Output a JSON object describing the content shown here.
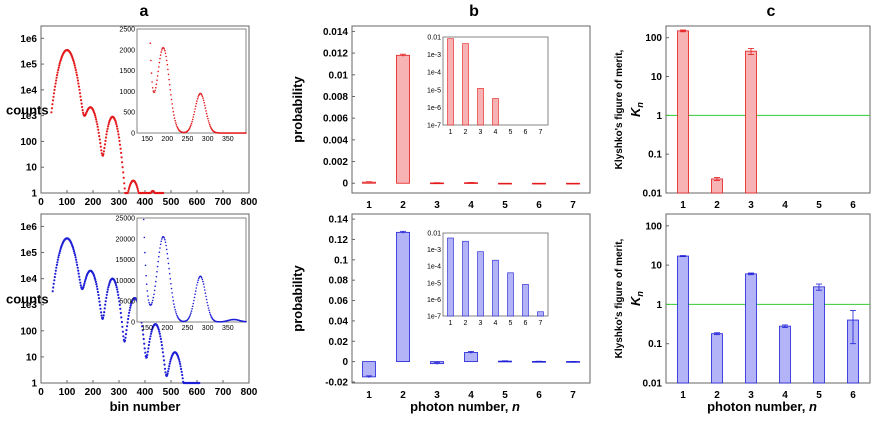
{
  "figure": {
    "column_letters": [
      "a",
      "b",
      "c"
    ],
    "colors": {
      "red": "#e31a1c",
      "red_fill": "#f7b3b3",
      "blue": "#1f1fd6",
      "blue_fill": "#b3b3f7",
      "green_line": "#33cc33"
    }
  },
  "chart_data": [
    {
      "id": "a_top",
      "type": "scatter",
      "color": "red",
      "xlabel": "",
      "ylabel": "counts",
      "xlim": [
        0,
        800
      ],
      "ylim": [
        1,
        3000000
      ],
      "yscale": "log",
      "xticks": [
        0,
        100,
        200,
        300,
        400,
        500,
        600,
        700,
        800
      ],
      "yticks": [
        1,
        10,
        100,
        1000,
        10000,
        100000,
        1000000
      ],
      "ytick_labels": [
        "1",
        "10",
        "100",
        "1e3",
        "1e4",
        "1e5",
        "1e6"
      ],
      "peaks": [
        [
          100,
          350000,
          18
        ],
        [
          190,
          2100,
          15
        ],
        [
          275,
          900,
          13
        ],
        [
          355,
          3,
          14
        ],
        [
          430,
          1.2,
          12
        ]
      ],
      "x_range": [
        40,
        470
      ],
      "inset": {
        "xlim": [
          125,
          395
        ],
        "ylim": [
          0,
          2500
        ],
        "xticks": [
          150,
          200,
          250,
          300,
          350
        ],
        "yticks": [
          0,
          500,
          1000,
          1500,
          2000,
          2500
        ],
        "peaks": [
          [
            100,
            350000,
            18
          ],
          [
            190,
            2050,
            15
          ],
          [
            282,
            950,
            13
          ]
        ],
        "x_range": [
          125,
          395
        ]
      }
    },
    {
      "id": "a_bottom",
      "type": "scatter",
      "color": "blue",
      "xlabel": "bin number",
      "ylabel": "counts",
      "xlim": [
        0,
        800
      ],
      "ylim": [
        1,
        3000000
      ],
      "yscale": "log",
      "xticks": [
        0,
        100,
        200,
        300,
        400,
        500,
        600,
        700,
        800
      ],
      "yticks": [
        1,
        10,
        100,
        1000,
        10000,
        100000,
        1000000
      ],
      "ytick_labels": [
        "1",
        "10",
        "100",
        "1e3",
        "1e4",
        "1e5",
        "1e6"
      ],
      "peaks": [
        [
          100,
          350000,
          18
        ],
        [
          190,
          20000,
          15
        ],
        [
          275,
          10000,
          13
        ],
        [
          360,
          1800,
          13
        ],
        [
          440,
          180,
          13
        ],
        [
          515,
          15,
          14
        ]
      ],
      "x_range": [
        45,
        610
      ],
      "inset": {
        "xlim": [
          125,
          395
        ],
        "ylim": [
          0,
          25000
        ],
        "xticks": [
          150,
          200,
          250,
          300,
          350
        ],
        "yticks": [
          0,
          5000,
          10000,
          15000,
          20000,
          25000
        ],
        "peaks": [
          [
            100,
            350000,
            18
          ],
          [
            190,
            20500,
            15
          ],
          [
            282,
            11000,
            13
          ],
          [
            365,
            600,
            14
          ]
        ],
        "x_range": [
          125,
          395
        ]
      }
    },
    {
      "id": "b_top",
      "type": "bar",
      "color": "red",
      "xlabel": "",
      "ylabel": "probability",
      "categories": [
        1,
        2,
        3,
        4,
        5,
        6,
        7
      ],
      "values": [
        0.0001,
        0.0118,
        3e-05,
        5e-05,
        0,
        0,
        0
      ],
      "errors": [
        4e-05,
        0.0001,
        2e-05,
        2e-05,
        0,
        0,
        0
      ],
      "ylim": [
        -0.0009,
        0.0145
      ],
      "yticks": [
        0,
        0.002,
        0.004,
        0.006,
        0.008,
        0.01,
        0.012,
        0.014
      ],
      "ytick_labels": [
        "0",
        "0.002",
        "0.004",
        "0.006",
        "0.008",
        "0.01",
        "0.012",
        "0.014"
      ],
      "inset": {
        "yscale": "log",
        "ylim": [
          1e-07,
          0.01
        ],
        "yticks": [
          1e-07,
          1e-06,
          1e-05,
          0.0001,
          0.001,
          0.01
        ],
        "ytick_labels": [
          "1e-7",
          "1e-6",
          "1e-5",
          "1e-4",
          "1e-3",
          "0.01"
        ],
        "categories": [
          1,
          2,
          3,
          4,
          5,
          6,
          7
        ],
        "values": [
          0.008,
          0.0042,
          1.2e-05,
          3.2e-06,
          null,
          null,
          null
        ]
      }
    },
    {
      "id": "b_bottom",
      "type": "bar",
      "color": "blue",
      "xlabel": "photon number, n",
      "ylabel": "probability",
      "categories": [
        1,
        2,
        3,
        4,
        5,
        6,
        7
      ],
      "values": [
        -0.015,
        0.127,
        -0.002,
        0.009,
        0.0005,
        0.0002,
        0.0001
      ],
      "errors": [
        0.001,
        0.001,
        0.001,
        0.001,
        0.0003,
        0.0002,
        0.0001
      ],
      "ylim": [
        -0.021,
        0.145
      ],
      "yticks": [
        -0.02,
        0,
        0.02,
        0.04,
        0.06,
        0.08,
        0.1,
        0.12,
        0.14
      ],
      "ytick_labels": [
        "-0.02",
        "0",
        "0.02",
        "0.04",
        "0.06",
        "0.08",
        "0.1",
        "0.12",
        "0.14"
      ],
      "inset": {
        "yscale": "log",
        "ylim": [
          1e-07,
          0.01
        ],
        "yticks": [
          1e-07,
          1e-06,
          1e-05,
          0.0001,
          0.001,
          0.01
        ],
        "ytick_labels": [
          "1e-7",
          "1e-6",
          "1e-5",
          "1e-4",
          "1e-3",
          "0.01"
        ],
        "categories": [
          1,
          2,
          3,
          4,
          5,
          6,
          7
        ],
        "values": [
          0.005,
          0.0032,
          0.00075,
          0.00023,
          4e-05,
          8e-06,
          1.8e-07
        ]
      }
    },
    {
      "id": "c_top",
      "type": "bar",
      "color": "red",
      "xlabel": "",
      "ylabel": "Klyshko's figure of merit,",
      "ylabel_symbol": "K",
      "ylabel_subscript": "n",
      "categories": [
        1,
        2,
        3,
        4,
        5,
        6
      ],
      "values": [
        150,
        0.023,
        45,
        null,
        null,
        null
      ],
      "errors": [
        8,
        0.002,
        8,
        0,
        0,
        0
      ],
      "yscale": "log",
      "ylim": [
        0.01,
        200
      ],
      "yticks": [
        0.01,
        0.1,
        1,
        10,
        100
      ],
      "ytick_labels": [
        "0.01",
        "0.1",
        "1",
        "10",
        "100"
      ],
      "reference_line": 1
    },
    {
      "id": "c_bottom",
      "type": "bar",
      "color": "blue",
      "xlabel": "photon number, n",
      "ylabel": "Klyshko's figure of merit,",
      "ylabel_symbol": "K",
      "ylabel_subscript": "n",
      "categories": [
        1,
        2,
        3,
        4,
        5,
        6
      ],
      "values": [
        17,
        0.18,
        6,
        0.28,
        2.8,
        0.4
      ],
      "errors": [
        0.5,
        0.01,
        0.3,
        0.02,
        0.5,
        0.3
      ],
      "yscale": "log",
      "ylim": [
        0.01,
        200
      ],
      "yticks": [
        0.01,
        0.1,
        1,
        10,
        100
      ],
      "ytick_labels": [
        "0.01",
        "0.1",
        "1",
        "10",
        "100"
      ],
      "reference_line": 1
    }
  ]
}
